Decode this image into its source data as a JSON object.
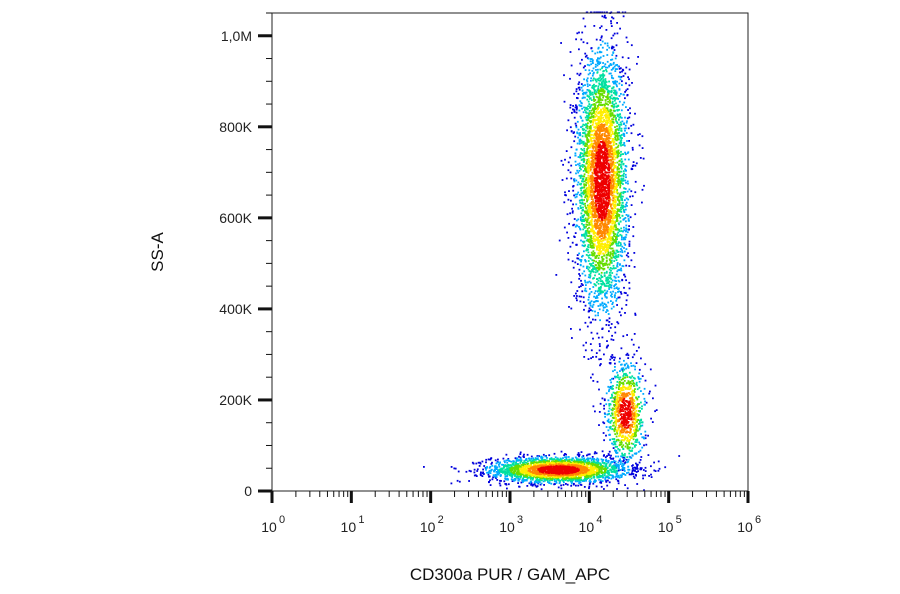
{
  "chart_data": {
    "type": "scatter",
    "title": "",
    "xlabel": "CD300a PUR / GAM_APC",
    "ylabel": "SS-A",
    "x_scale": "log",
    "y_scale": "linear",
    "xlim": [
      1,
      1000000
    ],
    "ylim": [
      0,
      1050000
    ],
    "x_ticks": [
      {
        "value": 1,
        "base": "10",
        "exp": "0"
      },
      {
        "value": 10,
        "base": "10",
        "exp": "1"
      },
      {
        "value": 100,
        "base": "10",
        "exp": "2"
      },
      {
        "value": 1000,
        "base": "10",
        "exp": "3"
      },
      {
        "value": 10000,
        "base": "10",
        "exp": "4"
      },
      {
        "value": 100000,
        "base": "10",
        "exp": "5"
      },
      {
        "value": 1000000,
        "base": "10",
        "exp": "6"
      }
    ],
    "y_ticks": [
      {
        "value": 0,
        "label": "0"
      },
      {
        "value": 200000,
        "label": "200K"
      },
      {
        "value": 400000,
        "label": "400K"
      },
      {
        "value": 600000,
        "label": "600K"
      },
      {
        "value": 800000,
        "label": "800K"
      },
      {
        "value": 1000000,
        "label": "1,0M"
      }
    ],
    "grid": false,
    "legend": "none",
    "colormap": [
      "#0000dd",
      "#00aaff",
      "#00e0a0",
      "#66dd00",
      "#ffee00",
      "#ff8800",
      "#ee0000"
    ],
    "populations": [
      {
        "log10_x_center": 3.6,
        "log10_x_sd": 0.42,
        "y_center": 45000,
        "y_sd": 14000,
        "count": 2600
      },
      {
        "log10_x_center": 4.15,
        "log10_x_sd": 0.16,
        "y_center": 680000,
        "y_sd": 140000,
        "count": 4200
      },
      {
        "log10_x_center": 4.45,
        "log10_x_sd": 0.12,
        "y_center": 170000,
        "y_sd": 55000,
        "count": 900
      }
    ]
  }
}
